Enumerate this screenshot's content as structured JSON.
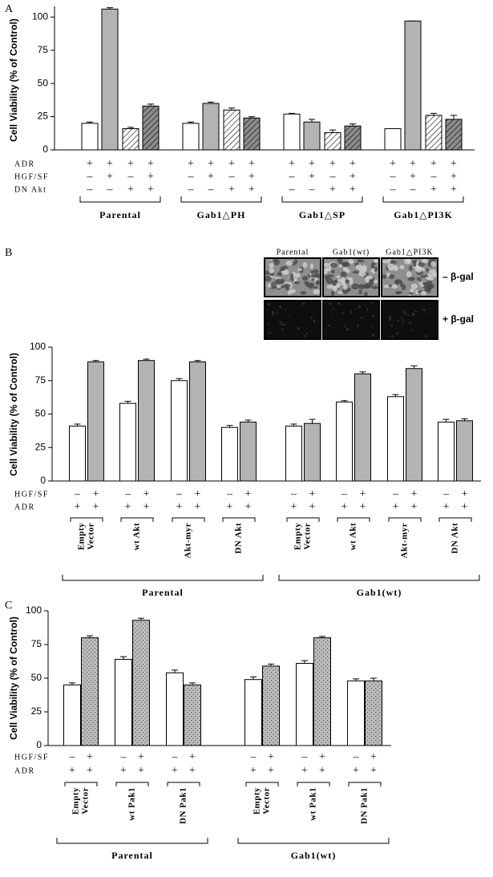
{
  "chart_data": [
    {
      "type": "bar",
      "panel": "A",
      "y_label": "Cell Viability (% of Control)",
      "ylim": [
        0,
        108
      ],
      "yticks": [
        0,
        25,
        50,
        75,
        100
      ],
      "row_labels": [
        "ADR",
        "HGF/SF",
        "DN Akt"
      ],
      "bar_colors": [
        "#ffffff",
        "#b3b3b3",
        "#ffffff",
        "#8c8c8c"
      ],
      "bar_textures": [
        "none",
        "none",
        "hatch",
        "hatch"
      ],
      "groups": [
        {
          "label": "Parental",
          "values": [
            20,
            106,
            16,
            33
          ],
          "errors": [
            1,
            1,
            1,
            1.5
          ],
          "signs": [
            [
              "+",
              "+",
              "+",
              "+"
            ],
            [
              "–",
              "+",
              "–",
              "+"
            ],
            [
              "–",
              "–",
              "+",
              "+"
            ]
          ]
        },
        {
          "label": "Gab1△PH",
          "values": [
            20,
            35,
            30,
            24
          ],
          "errors": [
            1,
            1,
            1.5,
            1
          ],
          "signs": [
            [
              "+",
              "+",
              "+",
              "+"
            ],
            [
              "–",
              "+",
              "–",
              "+"
            ],
            [
              "–",
              "–",
              "+",
              "+"
            ]
          ]
        },
        {
          "label": "Gab1△SP",
          "values": [
            27,
            21,
            13,
            18
          ],
          "errors": [
            0.5,
            2,
            2,
            1.5
          ],
          "signs": [
            [
              "+",
              "+",
              "+",
              "+"
            ],
            [
              "–",
              "+",
              "–",
              "+"
            ],
            [
              "–",
              "–",
              "+",
              "+"
            ]
          ]
        },
        {
          "label": "Gab1△PI3K",
          "values": [
            16,
            97,
            26,
            23
          ],
          "errors": [
            0,
            0,
            1.5,
            3
          ],
          "signs": [
            [
              "+",
              "+",
              "+",
              "+"
            ],
            [
              "–",
              "+",
              "–",
              "+"
            ],
            [
              "–",
              "–",
              "+",
              "+"
            ]
          ]
        }
      ]
    },
    {
      "type": "bar",
      "panel": "B",
      "y_label": "Cell Viability (% of Control)",
      "ylim": [
        0,
        100
      ],
      "yticks": [
        0,
        25,
        50,
        75,
        100
      ],
      "row_labels": [
        "HGF/SF",
        "ADR"
      ],
      "bar_colors": [
        "#ffffff",
        "#b3b3b3"
      ],
      "bar_textures": [
        "none",
        "none"
      ],
      "inset": {
        "columns": [
          "Parental",
          "Gab1(wt)",
          "Gab1△PI3K"
        ],
        "rows": [
          "– β-gal",
          "+ β-gal"
        ]
      },
      "supergroups": [
        {
          "label": "Parental",
          "groups": [
            {
              "label": [
                "Empty",
                "Vector"
              ],
              "values": [
                41,
                89
              ],
              "errors": [
                1.5,
                1
              ],
              "signs": [
                [
                  "–",
                  "+"
                ],
                [
                  "+",
                  "+"
                ]
              ]
            },
            {
              "label": [
                "wt Akt"
              ],
              "values": [
                58,
                90
              ],
              "errors": [
                1.5,
                1
              ],
              "signs": [
                [
                  "–",
                  "+"
                ],
                [
                  "+",
                  "+"
                ]
              ]
            },
            {
              "label": [
                "Akt-myr"
              ],
              "values": [
                75,
                89
              ],
              "errors": [
                1.5,
                1
              ],
              "signs": [
                [
                  "–",
                  "+"
                ],
                [
                  "+",
                  "+"
                ]
              ]
            },
            {
              "label": [
                "DN Akt"
              ],
              "values": [
                40,
                44
              ],
              "errors": [
                1.5,
                1.5
              ],
              "signs": [
                [
                  "–",
                  "+"
                ],
                [
                  "+",
                  "+"
                ]
              ]
            }
          ]
        },
        {
          "label": "Gab1(wt)",
          "groups": [
            {
              "label": [
                "Empty",
                "Vector"
              ],
              "values": [
                41,
                43
              ],
              "errors": [
                1.5,
                3
              ],
              "signs": [
                [
                  "–",
                  "+"
                ],
                [
                  "+",
                  "+"
                ]
              ]
            },
            {
              "label": [
                "wt Akt"
              ],
              "values": [
                59,
                80
              ],
              "errors": [
                1,
                1.5
              ],
              "signs": [
                [
                  "–",
                  "+"
                ],
                [
                  "+",
                  "+"
                ]
              ]
            },
            {
              "label": [
                "Akt-myr"
              ],
              "values": [
                63,
                84
              ],
              "errors": [
                1.5,
                2
              ],
              "signs": [
                [
                  "–",
                  "+"
                ],
                [
                  "+",
                  "+"
                ]
              ]
            },
            {
              "label": [
                "DN Akt"
              ],
              "values": [
                44,
                45
              ],
              "errors": [
                2,
                1.5
              ],
              "signs": [
                [
                  "–",
                  "+"
                ],
                [
                  "+",
                  "+"
                ]
              ]
            }
          ]
        }
      ]
    },
    {
      "type": "bar",
      "panel": "C",
      "y_label": "Cell Viability (% of Control)",
      "ylim": [
        0,
        100
      ],
      "yticks": [
        0,
        25,
        50,
        75,
        100
      ],
      "row_labels": [
        "HGF/SF",
        "ADR"
      ],
      "bar_colors": [
        "#ffffff",
        "#bdbdbd"
      ],
      "bar_textures": [
        "none",
        "dots"
      ],
      "supergroups": [
        {
          "label": "Parental",
          "groups": [
            {
              "label": [
                "Empty",
                "Vector"
              ],
              "values": [
                45,
                80
              ],
              "errors": [
                1.5,
                1.5
              ],
              "signs": [
                [
                  "–",
                  "+"
                ],
                [
                  "+",
                  "+"
                ]
              ]
            },
            {
              "label": [
                "wt Pak1"
              ],
              "values": [
                64,
                93
              ],
              "errors": [
                2,
                1.5
              ],
              "signs": [
                [
                  "–",
                  "+"
                ],
                [
                  "+",
                  "+"
                ]
              ]
            },
            {
              "label": [
                "DN Pak1"
              ],
              "values": [
                54,
                45
              ],
              "errors": [
                2,
                1.5
              ],
              "signs": [
                [
                  "–",
                  "+"
                ],
                [
                  "+",
                  "+"
                ]
              ]
            }
          ]
        },
        {
          "label": "Gab1(wt)",
          "groups": [
            {
              "label": [
                "Empty",
                "Vector"
              ],
              "values": [
                49,
                59
              ],
              "errors": [
                2,
                1.5
              ],
              "signs": [
                [
                  "–",
                  "+"
                ],
                [
                  "+",
                  "+"
                ]
              ]
            },
            {
              "label": [
                "wt Pak1"
              ],
              "values": [
                61,
                80
              ],
              "errors": [
                2,
                1
              ],
              "signs": [
                [
                  "–",
                  "+"
                ],
                [
                  "+",
                  "+"
                ]
              ]
            },
            {
              "label": [
                "DN Pak1"
              ],
              "values": [
                48,
                48
              ],
              "errors": [
                1.5,
                2
              ],
              "signs": [
                [
                  "–",
                  "+"
                ],
                [
                  "+",
                  "+"
                ]
              ]
            }
          ]
        }
      ]
    }
  ]
}
